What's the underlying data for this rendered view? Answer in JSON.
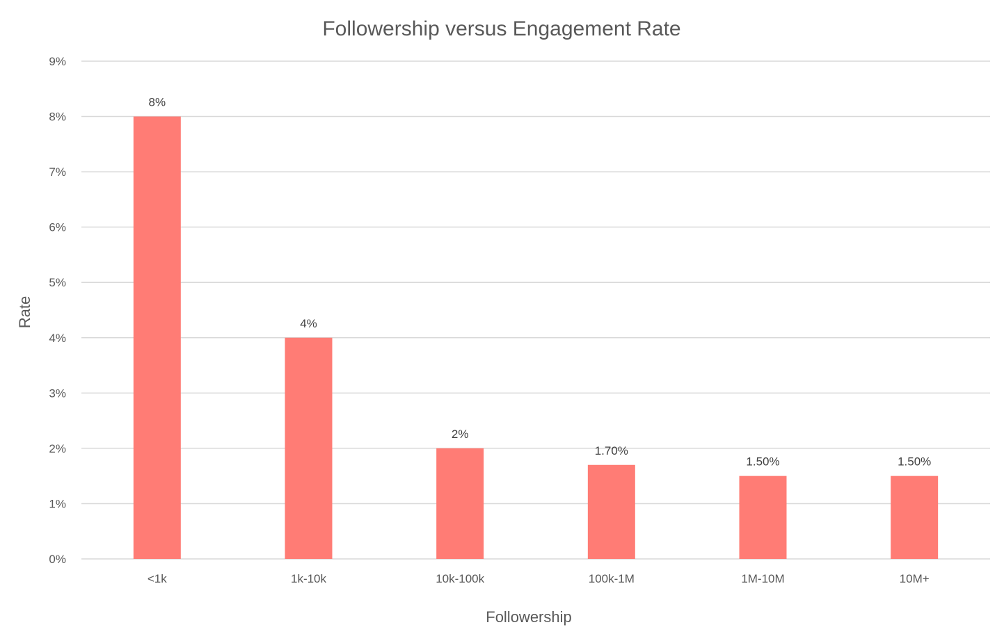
{
  "chart_data": {
    "type": "bar",
    "title": "Followership versus Engagement Rate",
    "xlabel": "Followership",
    "ylabel": "Rate",
    "categories": [
      "<1k",
      "1k-10k",
      "10k-100k",
      "100k-1M",
      "1M-10M",
      "10M+"
    ],
    "values": [
      8,
      4,
      2,
      1.7,
      1.5,
      1.5
    ],
    "data_labels": [
      "8%",
      "4%",
      "2%",
      "1.70%",
      "1.50%",
      "1.50%"
    ],
    "ylim": [
      0,
      9
    ],
    "yticks": [
      0,
      1,
      2,
      3,
      4,
      5,
      6,
      7,
      8,
      9
    ],
    "ytick_labels": [
      "0%",
      "1%",
      "2%",
      "3%",
      "4%",
      "5%",
      "6%",
      "7%",
      "8%",
      "9%"
    ],
    "unit": "%",
    "grid": true,
    "legend": "none",
    "bar_color": "#ff7c75"
  }
}
